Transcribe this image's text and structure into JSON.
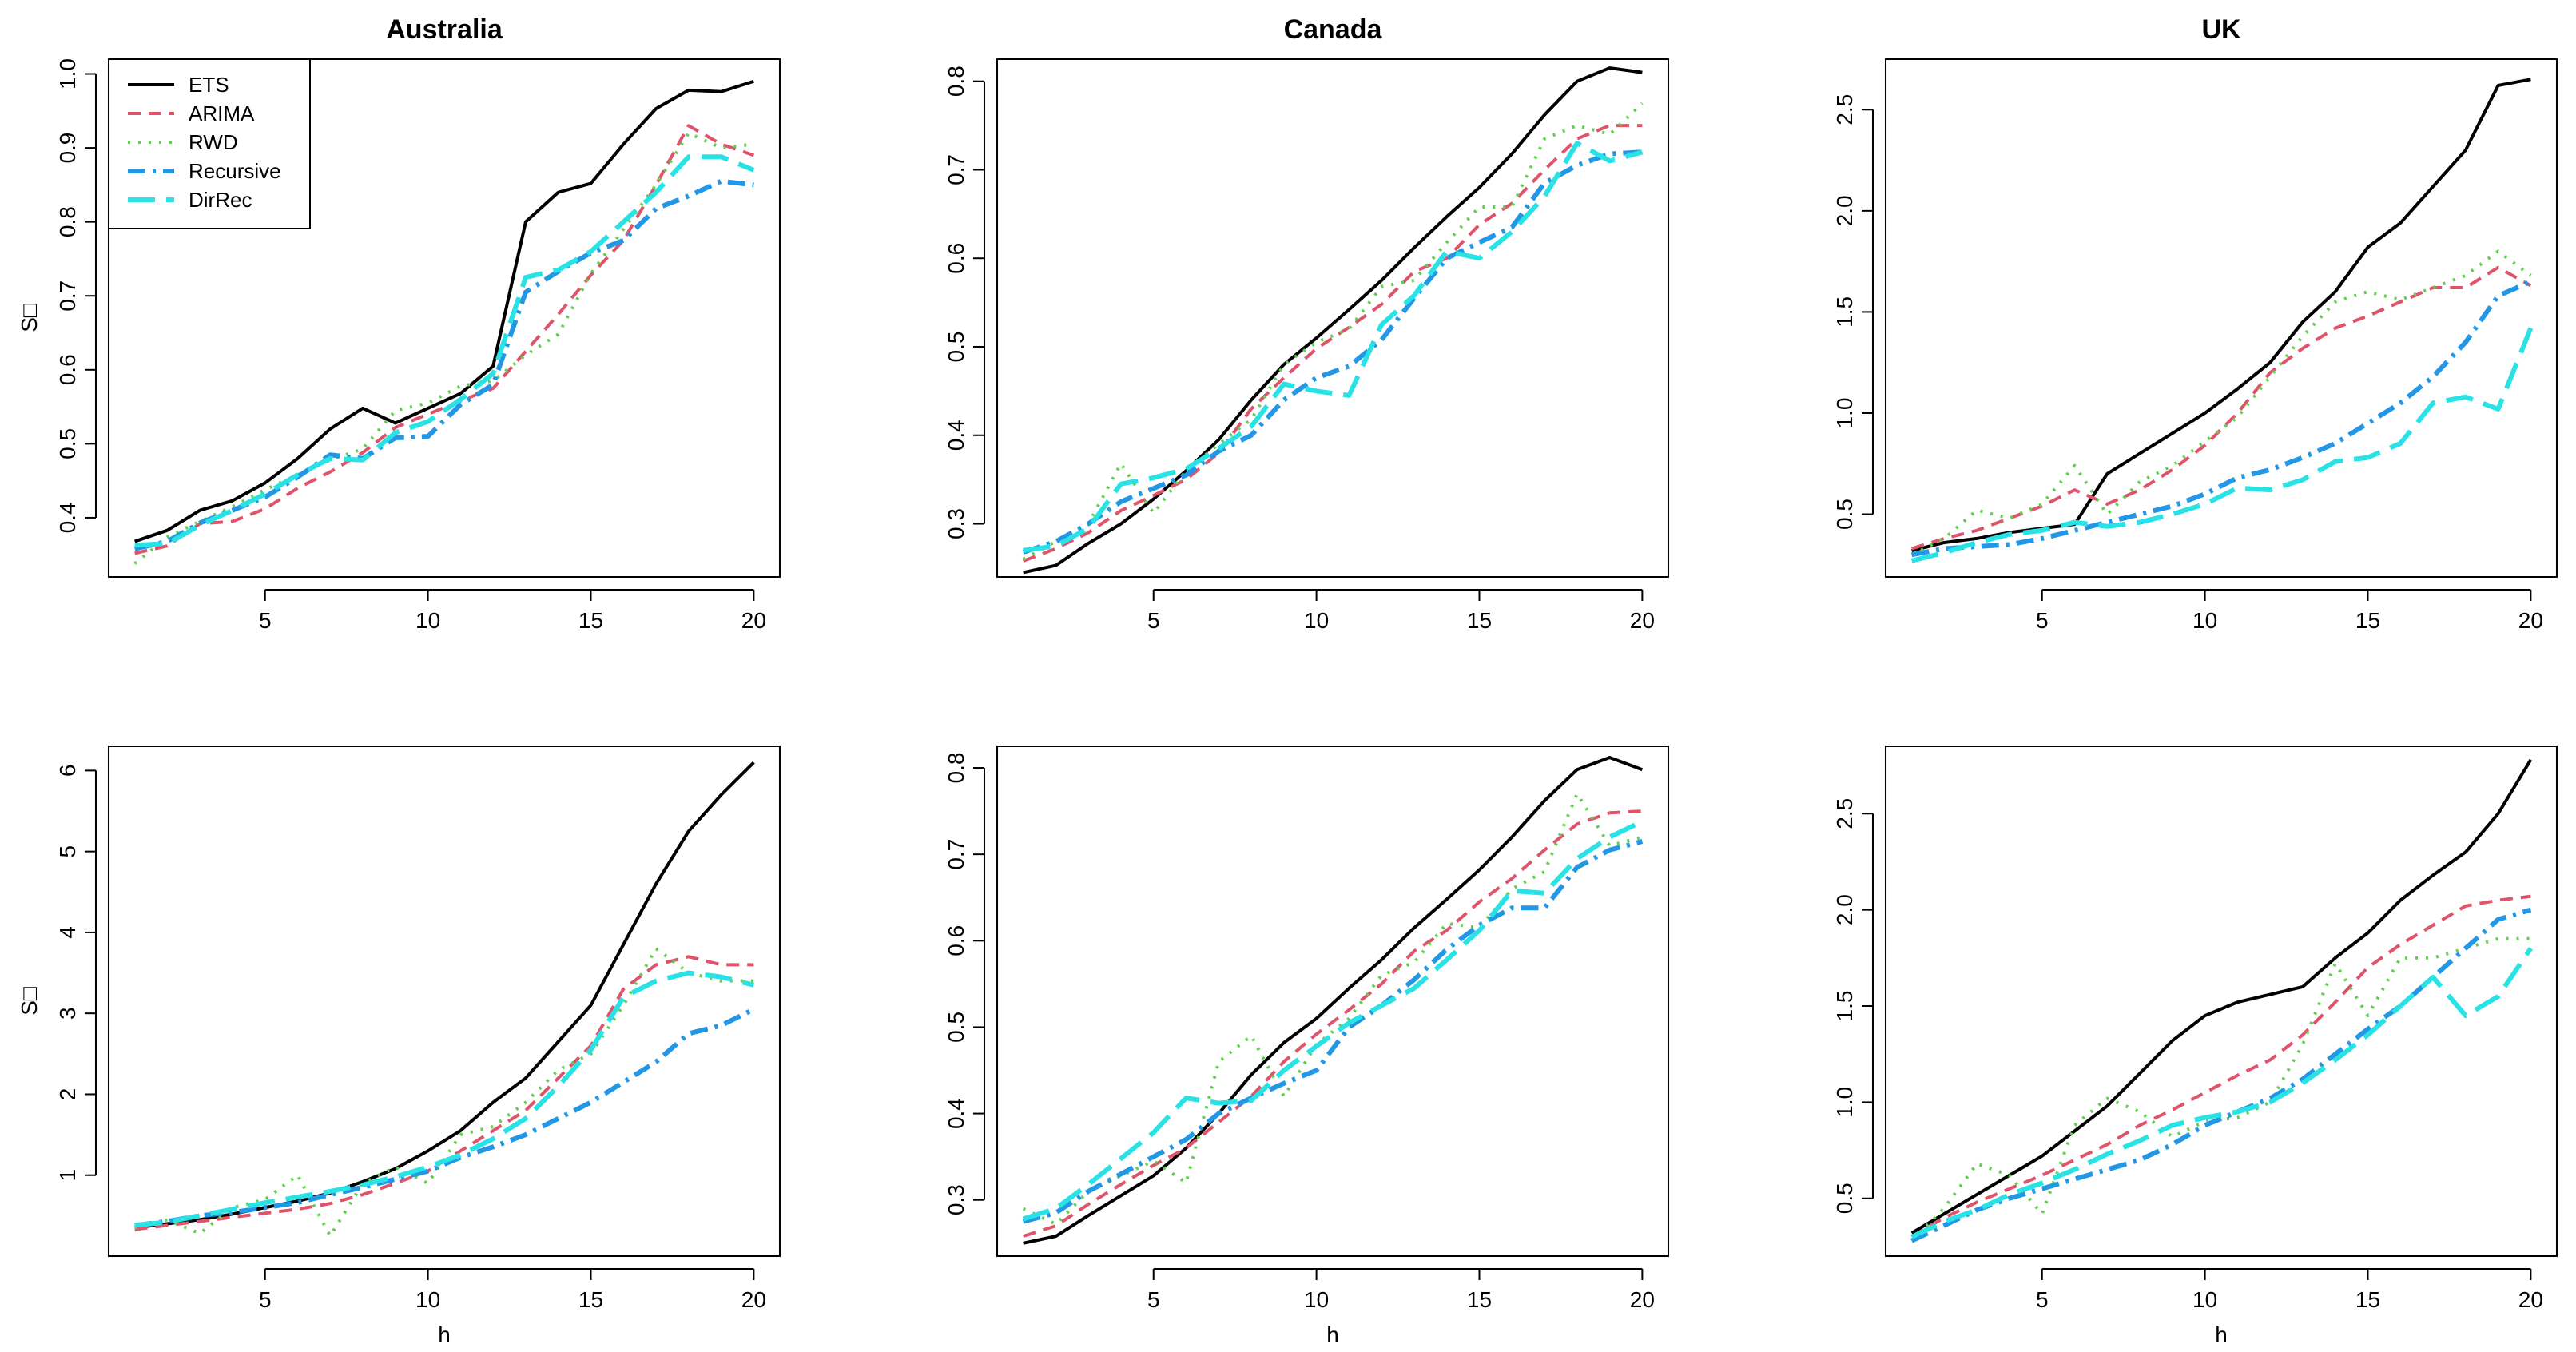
{
  "figure": {
    "series_styles": [
      {
        "name": "ETS",
        "color": "#000000",
        "dash": "",
        "width": 4
      },
      {
        "name": "ARIMA",
        "color": "#DF536B",
        "dash": "16 10",
        "width": 4
      },
      {
        "name": "RWD",
        "color": "#61D04F",
        "dash": "3 10",
        "width": 4
      },
      {
        "name": "Recursive",
        "color": "#2297E6",
        "dash": "22 9 4 9",
        "width": 6
      },
      {
        "name": "DirRec",
        "color": "#28E2E5",
        "dash": "34 14",
        "width": 6
      }
    ],
    "legend": {
      "entries": [
        "ETS",
        "ARIMA",
        "RWD",
        "Recursive",
        "DirRec"
      ],
      "position": "top-left"
    }
  },
  "chart_data": [
    {
      "type": "line",
      "title": "Australia",
      "xlabel": "",
      "ylabel": "S□",
      "xlim": [
        0.2,
        20.8
      ],
      "ylim": [
        0.32,
        1.02
      ],
      "xticks": [
        5,
        10,
        15,
        20
      ],
      "yticks": [
        0.4,
        0.5,
        0.6,
        0.7,
        0.8,
        0.9,
        1.0
      ],
      "ytick_labels": [
        "0.4",
        "0.5",
        "0.6",
        "0.7",
        "0.8",
        "0.9",
        "1.0"
      ],
      "x": [
        1,
        2,
        3,
        4,
        5,
        6,
        7,
        8,
        9,
        10,
        11,
        12,
        13,
        14,
        15,
        16,
        17,
        18,
        19,
        20
      ],
      "series": [
        {
          "name": "ETS",
          "values": [
            0.368,
            0.383,
            0.41,
            0.423,
            0.447,
            0.48,
            0.52,
            0.548,
            0.528,
            0.548,
            0.568,
            0.605,
            0.8,
            0.84,
            0.852,
            0.905,
            0.953,
            0.978,
            0.976,
            0.99
          ]
        },
        {
          "name": "ARIMA",
          "values": [
            0.352,
            0.362,
            0.392,
            0.395,
            0.412,
            0.44,
            0.462,
            0.488,
            0.522,
            0.54,
            0.558,
            0.575,
            0.625,
            0.675,
            0.728,
            0.775,
            0.85,
            0.93,
            0.905,
            0.89
          ]
        },
        {
          "name": "RWD",
          "values": [
            0.338,
            0.374,
            0.395,
            0.415,
            0.438,
            0.458,
            0.478,
            0.493,
            0.545,
            0.555,
            0.578,
            0.585,
            0.62,
            0.648,
            0.73,
            0.79,
            0.85,
            0.92,
            0.9,
            0.905
          ]
        },
        {
          "name": "Recursive",
          "values": [
            0.358,
            0.368,
            0.393,
            0.41,
            0.428,
            0.455,
            0.485,
            0.48,
            0.508,
            0.51,
            0.553,
            0.58,
            0.705,
            0.733,
            0.758,
            0.775,
            0.818,
            0.835,
            0.855,
            0.85
          ]
        },
        {
          "name": "DirRec",
          "values": [
            0.363,
            0.365,
            0.39,
            0.41,
            0.432,
            0.458,
            0.48,
            0.478,
            0.515,
            0.53,
            0.56,
            0.595,
            0.725,
            0.735,
            0.76,
            0.8,
            0.84,
            0.888,
            0.888,
            0.87
          ]
        }
      ]
    },
    {
      "type": "line",
      "title": "Canada",
      "xlabel": "",
      "ylabel": "",
      "xlim": [
        0.2,
        20.8
      ],
      "ylim": [
        0.24,
        0.825
      ],
      "xticks": [
        5,
        10,
        15,
        20
      ],
      "yticks": [
        0.3,
        0.4,
        0.5,
        0.6,
        0.7,
        0.8
      ],
      "ytick_labels": [
        "0.3",
        "0.4",
        "0.5",
        "0.6",
        "0.7",
        "0.8"
      ],
      "x": [
        1,
        2,
        3,
        4,
        5,
        6,
        7,
        8,
        9,
        10,
        11,
        12,
        13,
        14,
        15,
        16,
        17,
        18,
        19,
        20
      ],
      "series": [
        {
          "name": "ETS",
          "values": [
            0.245,
            0.253,
            0.278,
            0.3,
            0.328,
            0.36,
            0.395,
            0.44,
            0.48,
            0.51,
            0.542,
            0.575,
            0.612,
            0.647,
            0.68,
            0.718,
            0.762,
            0.8,
            0.815,
            0.81
          ]
        },
        {
          "name": "ARIMA",
          "values": [
            0.258,
            0.272,
            0.29,
            0.315,
            0.332,
            0.35,
            0.38,
            0.43,
            0.465,
            0.498,
            0.522,
            0.548,
            0.585,
            0.6,
            0.638,
            0.662,
            0.7,
            0.735,
            0.75,
            0.75
          ]
        },
        {
          "name": "RWD",
          "values": [
            0.26,
            0.28,
            0.3,
            0.368,
            0.312,
            0.36,
            0.39,
            0.418,
            0.48,
            0.505,
            0.52,
            0.568,
            0.575,
            0.618,
            0.658,
            0.658,
            0.735,
            0.75,
            0.74,
            0.775
          ]
        },
        {
          "name": "Recursive",
          "values": [
            0.268,
            0.28,
            0.3,
            0.325,
            0.34,
            0.355,
            0.382,
            0.4,
            0.44,
            0.465,
            0.478,
            0.508,
            0.555,
            0.6,
            0.618,
            0.635,
            0.685,
            0.705,
            0.718,
            0.72
          ]
        },
        {
          "name": "DirRec",
          "values": [
            0.27,
            0.275,
            0.295,
            0.345,
            0.352,
            0.362,
            0.385,
            0.41,
            0.458,
            0.45,
            0.445,
            0.525,
            0.558,
            0.608,
            0.6,
            0.63,
            0.67,
            0.73,
            0.71,
            0.72
          ]
        }
      ]
    },
    {
      "type": "line",
      "title": "UK",
      "xlabel": "",
      "ylabel": "",
      "xlim": [
        0.2,
        20.8
      ],
      "ylim": [
        0.19,
        2.75
      ],
      "xticks": [
        5,
        10,
        15,
        20
      ],
      "yticks": [
        0.5,
        1.0,
        1.5,
        2.0,
        2.5
      ],
      "ytick_labels": [
        "0.5",
        "1.0",
        "1.5",
        "2.0",
        "2.5"
      ],
      "x": [
        1,
        2,
        3,
        4,
        5,
        6,
        7,
        8,
        9,
        10,
        11,
        12,
        13,
        14,
        15,
        16,
        17,
        18,
        19,
        20
      ],
      "series": [
        {
          "name": "ETS",
          "values": [
            0.32,
            0.36,
            0.38,
            0.41,
            0.43,
            0.45,
            0.7,
            0.8,
            0.9,
            1.0,
            1.12,
            1.25,
            1.45,
            1.6,
            1.82,
            1.94,
            2.12,
            2.3,
            2.62,
            2.65
          ]
        },
        {
          "name": "ARIMA",
          "values": [
            0.33,
            0.38,
            0.42,
            0.48,
            0.54,
            0.62,
            0.55,
            0.62,
            0.72,
            0.84,
            1.0,
            1.2,
            1.32,
            1.42,
            1.48,
            1.55,
            1.62,
            1.62,
            1.72,
            1.63
          ]
        },
        {
          "name": "RWD",
          "values": [
            0.3,
            0.38,
            0.52,
            0.48,
            0.55,
            0.74,
            0.5,
            0.66,
            0.74,
            0.86,
            0.98,
            1.18,
            1.38,
            1.55,
            1.6,
            1.56,
            1.62,
            1.68,
            1.8,
            1.68
          ]
        },
        {
          "name": "Recursive",
          "values": [
            0.3,
            0.33,
            0.34,
            0.35,
            0.38,
            0.42,
            0.46,
            0.5,
            0.54,
            0.6,
            0.68,
            0.72,
            0.78,
            0.85,
            0.95,
            1.05,
            1.18,
            1.35,
            1.58,
            1.65
          ]
        },
        {
          "name": "DirRec",
          "values": [
            0.27,
            0.31,
            0.36,
            0.4,
            0.42,
            0.46,
            0.44,
            0.46,
            0.5,
            0.55,
            0.63,
            0.62,
            0.67,
            0.76,
            0.78,
            0.85,
            1.05,
            1.08,
            1.02,
            1.42
          ]
        }
      ]
    },
    {
      "type": "line",
      "title": "",
      "xlabel": "h",
      "ylabel": "S□",
      "xlim": [
        0.2,
        20.8
      ],
      "ylim": [
        0.0,
        6.3
      ],
      "xticks": [
        5,
        10,
        15,
        20
      ],
      "yticks": [
        1,
        2,
        3,
        4,
        5,
        6
      ],
      "ytick_labels": [
        "1",
        "2",
        "3",
        "4",
        "5",
        "6"
      ],
      "x": [
        1,
        2,
        3,
        4,
        5,
        6,
        7,
        8,
        9,
        10,
        11,
        12,
        13,
        14,
        15,
        16,
        17,
        18,
        19,
        20
      ],
      "series": [
        {
          "name": "ETS",
          "values": [
            0.35,
            0.4,
            0.45,
            0.52,
            0.6,
            0.68,
            0.78,
            0.92,
            1.08,
            1.3,
            1.55,
            1.9,
            2.2,
            2.65,
            3.1,
            3.85,
            4.6,
            5.25,
            5.7,
            6.1
          ]
        },
        {
          "name": "ARIMA",
          "values": [
            0.33,
            0.38,
            0.43,
            0.48,
            0.53,
            0.58,
            0.65,
            0.76,
            0.9,
            1.05,
            1.3,
            1.55,
            1.8,
            2.2,
            2.6,
            3.3,
            3.6,
            3.7,
            3.6,
            3.6
          ]
        },
        {
          "name": "RWD",
          "values": [
            0.35,
            0.45,
            0.28,
            0.6,
            0.7,
            1.0,
            0.25,
            0.9,
            1.1,
            0.9,
            1.5,
            1.6,
            1.9,
            2.3,
            2.5,
            3.1,
            3.8,
            3.5,
            3.4,
            3.4
          ]
        },
        {
          "name": "Recursive",
          "values": [
            0.38,
            0.43,
            0.5,
            0.54,
            0.6,
            0.66,
            0.76,
            0.85,
            0.95,
            1.05,
            1.22,
            1.35,
            1.5,
            1.7,
            1.9,
            2.15,
            2.4,
            2.75,
            2.85,
            3.05
          ]
        },
        {
          "name": "DirRec",
          "values": [
            0.38,
            0.42,
            0.5,
            0.58,
            0.66,
            0.73,
            0.8,
            0.88,
            0.98,
            1.1,
            1.25,
            1.45,
            1.7,
            2.1,
            2.55,
            3.2,
            3.4,
            3.5,
            3.45,
            3.35
          ]
        }
      ]
    },
    {
      "type": "line",
      "title": "",
      "xlabel": "h",
      "ylabel": "",
      "xlim": [
        0.2,
        20.8
      ],
      "ylim": [
        0.235,
        0.825
      ],
      "xticks": [
        5,
        10,
        15,
        20
      ],
      "yticks": [
        0.3,
        0.4,
        0.5,
        0.6,
        0.7,
        0.8
      ],
      "ytick_labels": [
        "0.3",
        "0.4",
        "0.5",
        "0.6",
        "0.7",
        "0.8"
      ],
      "x": [
        1,
        2,
        3,
        4,
        5,
        6,
        7,
        8,
        9,
        10,
        11,
        12,
        13,
        14,
        15,
        16,
        17,
        18,
        19,
        20
      ],
      "series": [
        {
          "name": "ETS",
          "values": [
            0.25,
            0.258,
            0.282,
            0.305,
            0.328,
            0.36,
            0.4,
            0.445,
            0.482,
            0.51,
            0.545,
            0.578,
            0.615,
            0.648,
            0.682,
            0.72,
            0.762,
            0.798,
            0.812,
            0.798
          ]
        },
        {
          "name": "ARIMA",
          "values": [
            0.258,
            0.27,
            0.295,
            0.318,
            0.34,
            0.36,
            0.39,
            0.42,
            0.46,
            0.492,
            0.52,
            0.55,
            0.588,
            0.612,
            0.645,
            0.672,
            0.705,
            0.735,
            0.748,
            0.75
          ]
        },
        {
          "name": "RWD",
          "values": [
            0.29,
            0.272,
            0.31,
            0.328,
            0.345,
            0.32,
            0.46,
            0.49,
            0.42,
            0.48,
            0.51,
            0.56,
            0.575,
            0.62,
            0.615,
            0.66,
            0.68,
            0.77,
            0.71,
            0.72
          ]
        },
        {
          "name": "Recursive",
          "values": [
            0.275,
            0.285,
            0.31,
            0.33,
            0.35,
            0.37,
            0.4,
            0.418,
            0.435,
            0.45,
            0.5,
            0.525,
            0.555,
            0.59,
            0.618,
            0.638,
            0.638,
            0.685,
            0.705,
            0.715
          ]
        },
        {
          "name": "DirRec",
          "values": [
            0.278,
            0.29,
            0.318,
            0.348,
            0.378,
            0.418,
            0.412,
            0.415,
            0.45,
            0.478,
            0.505,
            0.525,
            0.545,
            0.578,
            0.612,
            0.658,
            0.655,
            0.695,
            0.72,
            0.738
          ]
        }
      ]
    },
    {
      "type": "line",
      "title": "",
      "xlabel": "h",
      "ylabel": "",
      "xlim": [
        0.2,
        20.8
      ],
      "ylim": [
        0.2,
        2.85
      ],
      "xticks": [
        5,
        10,
        15,
        20
      ],
      "yticks": [
        0.5,
        1.0,
        1.5,
        2.0,
        2.5
      ],
      "ytick_labels": [
        "0.5",
        "1.0",
        "1.5",
        "2.0",
        "2.5"
      ],
      "x": [
        1,
        2,
        3,
        4,
        5,
        6,
        7,
        8,
        9,
        10,
        11,
        12,
        13,
        14,
        15,
        16,
        17,
        18,
        19,
        20
      ],
      "series": [
        {
          "name": "ETS",
          "values": [
            0.32,
            0.42,
            0.52,
            0.62,
            0.72,
            0.85,
            0.98,
            1.15,
            1.32,
            1.45,
            1.52,
            1.56,
            1.6,
            1.75,
            1.88,
            2.05,
            2.18,
            2.3,
            2.5,
            2.78
          ]
        },
        {
          "name": "ARIMA",
          "values": [
            0.3,
            0.4,
            0.48,
            0.55,
            0.62,
            0.7,
            0.78,
            0.88,
            0.96,
            1.05,
            1.14,
            1.22,
            1.35,
            1.52,
            1.7,
            1.82,
            1.92,
            2.02,
            2.05,
            2.07
          ]
        },
        {
          "name": "RWD",
          "values": [
            0.28,
            0.45,
            0.68,
            0.62,
            0.42,
            0.88,
            1.02,
            0.95,
            0.82,
            0.9,
            0.92,
            1.0,
            1.3,
            1.72,
            1.45,
            1.75,
            1.75,
            1.8,
            1.85,
            1.85
          ]
        },
        {
          "name": "Recursive",
          "values": [
            0.28,
            0.36,
            0.44,
            0.5,
            0.55,
            0.6,
            0.65,
            0.7,
            0.78,
            0.88,
            0.95,
            1.02,
            1.12,
            1.25,
            1.38,
            1.5,
            1.65,
            1.8,
            1.95,
            2.0
          ]
        },
        {
          "name": "DirRec",
          "values": [
            0.3,
            0.38,
            0.44,
            0.52,
            0.58,
            0.65,
            0.73,
            0.8,
            0.88,
            0.92,
            0.95,
            1.0,
            1.1,
            1.22,
            1.35,
            1.5,
            1.65,
            1.45,
            1.55,
            1.8
          ]
        }
      ]
    }
  ]
}
